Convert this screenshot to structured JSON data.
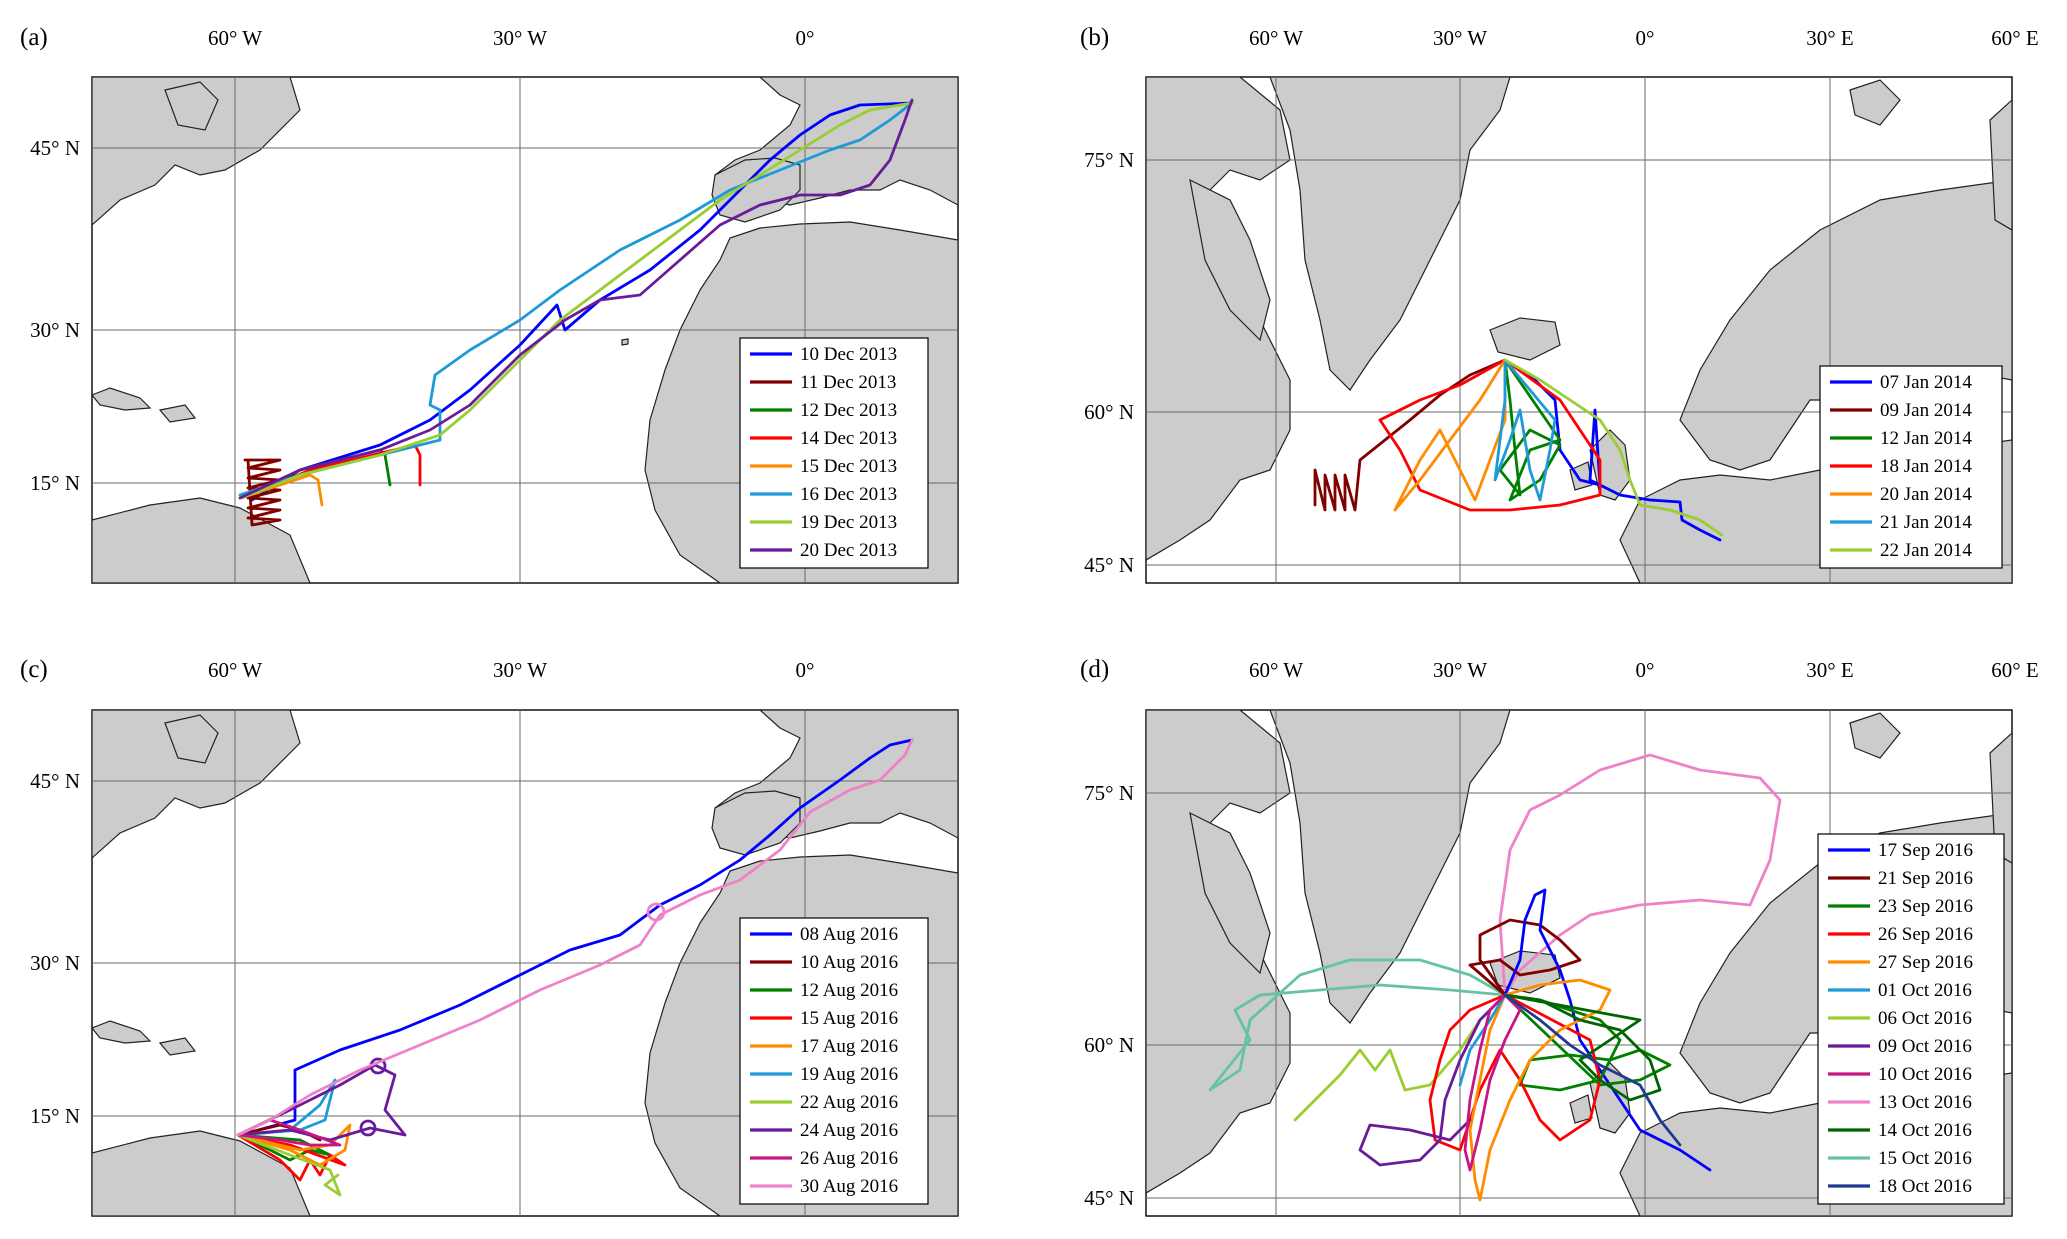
{
  "panels": [
    {
      "id": "a",
      "label": "(a)",
      "map": "atlantic",
      "lon_ticks": [
        {
          "lon": -60,
          "label": "60° W"
        },
        {
          "lon": -30,
          "label": "30° W"
        },
        {
          "lon": 0,
          "label": "0°"
        }
      ],
      "lat_ticks": [
        {
          "lat": 45,
          "label": "45° N"
        },
        {
          "lat": 30,
          "label": "30° N"
        },
        {
          "lat": 15,
          "label": "15° N"
        }
      ],
      "legend": [
        {
          "label": "10 Dec 2013",
          "color": "#0000ff"
        },
        {
          "label": "11 Dec 2013",
          "color": "#800000"
        },
        {
          "label": "12 Dec 2013",
          "color": "#008000"
        },
        {
          "label": "14 Dec 2013",
          "color": "#ff0000"
        },
        {
          "label": "15 Dec 2013",
          "color": "#ff8c00"
        },
        {
          "label": "16 Dec 2013",
          "color": "#1e9bd7"
        },
        {
          "label": "19 Dec 2013",
          "color": "#9acd32"
        },
        {
          "label": "20 Dec 2013",
          "color": "#6a1b9a"
        }
      ]
    },
    {
      "id": "b",
      "label": "(b)",
      "map": "north",
      "lon_ticks": [
        {
          "lon": -60,
          "label": "60° W"
        },
        {
          "lon": -30,
          "label": "30° W"
        },
        {
          "lon": 0,
          "label": "0°"
        },
        {
          "lon": 30,
          "label": "30° E"
        },
        {
          "lon": 60,
          "label": "60° E"
        }
      ],
      "lat_ticks": [
        {
          "lat": 75,
          "label": "75° N"
        },
        {
          "lat": 60,
          "label": "60° N"
        },
        {
          "lat": 45,
          "label": "45° N"
        }
      ],
      "legend": [
        {
          "label": "07 Jan 2014",
          "color": "#0000ff"
        },
        {
          "label": "09 Jan 2014",
          "color": "#800000"
        },
        {
          "label": "12 Jan 2014",
          "color": "#008000"
        },
        {
          "label": "18 Jan 2014",
          "color": "#ff0000"
        },
        {
          "label": "20 Jan 2014",
          "color": "#ff8c00"
        },
        {
          "label": "21 Jan 2014",
          "color": "#1e9bd7"
        },
        {
          "label": "22 Jan 2014",
          "color": "#9acd32"
        }
      ]
    },
    {
      "id": "c",
      "label": "(c)",
      "map": "atlantic",
      "lon_ticks": [
        {
          "lon": -60,
          "label": "60° W"
        },
        {
          "lon": -30,
          "label": "30° W"
        },
        {
          "lon": 0,
          "label": "0°"
        }
      ],
      "lat_ticks": [
        {
          "lat": 45,
          "label": "45° N"
        },
        {
          "lat": 30,
          "label": "30° N"
        },
        {
          "lat": 15,
          "label": "15° N"
        }
      ],
      "legend": [
        {
          "label": "08 Aug 2016",
          "color": "#0000ff"
        },
        {
          "label": "10 Aug 2016",
          "color": "#800000"
        },
        {
          "label": "12 Aug 2016",
          "color": "#008000"
        },
        {
          "label": "15 Aug 2016",
          "color": "#ff0000"
        },
        {
          "label": "17 Aug 2016",
          "color": "#ff8c00"
        },
        {
          "label": "19 Aug 2016",
          "color": "#1e9bd7"
        },
        {
          "label": "22 Aug 2016",
          "color": "#9acd32"
        },
        {
          "label": "24 Aug 2016",
          "color": "#6a1b9a"
        },
        {
          "label": "26 Aug 2016",
          "color": "#c71585"
        },
        {
          "label": "30 Aug 2016",
          "color": "#ee82c8"
        }
      ]
    },
    {
      "id": "d",
      "label": "(d)",
      "map": "north",
      "lon_ticks": [
        {
          "lon": -60,
          "label": "60° W"
        },
        {
          "lon": -30,
          "label": "30° W"
        },
        {
          "lon": 0,
          "label": "0°"
        },
        {
          "lon": 30,
          "label": "30° E"
        },
        {
          "lon": 60,
          "label": "60° E"
        }
      ],
      "lat_ticks": [
        {
          "lat": 75,
          "label": "75° N"
        },
        {
          "lat": 60,
          "label": "60° N"
        },
        {
          "lat": 45,
          "label": "45° N"
        }
      ],
      "legend": [
        {
          "label": "17 Sep 2016",
          "color": "#0000ff"
        },
        {
          "label": "21 Sep 2016",
          "color": "#800000"
        },
        {
          "label": "23 Sep 2016",
          "color": "#008000"
        },
        {
          "label": "26 Sep 2016",
          "color": "#ff0000"
        },
        {
          "label": "27 Sep 2016",
          "color": "#ff8c00"
        },
        {
          "label": "01 Oct 2016",
          "color": "#1e9bd7"
        },
        {
          "label": "06 Oct 2016",
          "color": "#9acd32"
        },
        {
          "label": "09 Oct 2016",
          "color": "#6a1b9a"
        },
        {
          "label": "10 Oct 2016",
          "color": "#c71585"
        },
        {
          "label": "13 Oct 2016",
          "color": "#ee82c8"
        },
        {
          "label": "14 Oct 2016",
          "color": "#006400"
        },
        {
          "label": "15 Oct 2016",
          "color": "#66c2a5"
        },
        {
          "label": "18 Oct 2016",
          "color": "#1f3a93"
        }
      ]
    }
  ],
  "colors": {
    "land": "#cccccc",
    "coast": "#222222",
    "grid": "#6a6a6a",
    "ocean": "#ffffff"
  }
}
